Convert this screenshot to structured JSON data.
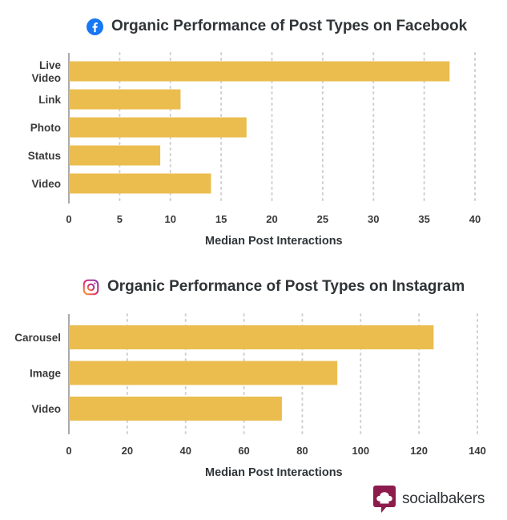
{
  "colors": {
    "bar": "#ebbd4f",
    "grid": "#d0d0d0",
    "axis": "#555555",
    "facebook": "#1877f2",
    "brand": "#8c1c4c"
  },
  "brand": {
    "name": "socialbakers",
    "logo_icon": "chef-hat-icon"
  },
  "chart_data": [
    {
      "type": "bar",
      "orientation": "horizontal",
      "icon": "facebook-icon",
      "title": "Organic Performance of Post Types on Facebook",
      "xlabel": "Median Post Interactions",
      "ylabel": "",
      "categories": [
        "Live\nVideo",
        "Link",
        "Photo",
        "Status",
        "Video"
      ],
      "values": [
        37.5,
        11,
        17.5,
        9,
        14
      ],
      "xlim": [
        0,
        40
      ],
      "xticks": [
        0,
        5,
        10,
        15,
        20,
        25,
        30,
        35,
        40
      ],
      "grid": true
    },
    {
      "type": "bar",
      "orientation": "horizontal",
      "icon": "instagram-icon",
      "title": "Organic Performance of Post Types on Instagram",
      "xlabel": "Median Post Interactions",
      "ylabel": "",
      "categories": [
        "Carousel",
        "Image",
        "Video"
      ],
      "values": [
        125,
        92,
        73
      ],
      "xlim": [
        0,
        140
      ],
      "xticks": [
        0,
        20,
        40,
        60,
        80,
        100,
        120,
        140
      ],
      "grid": true
    }
  ]
}
